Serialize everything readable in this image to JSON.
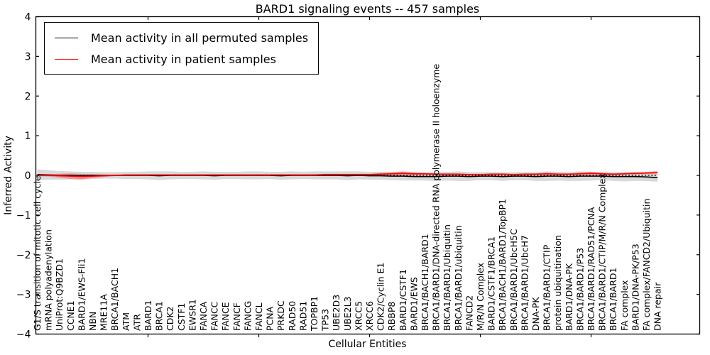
{
  "figure": {
    "title": "BARD1 signaling events -- 457 samples",
    "xlabel": "Cellular Entities",
    "ylabel": "Inferred Activity"
  },
  "legend": {
    "items": [
      {
        "label": "Mean activity in all permuted samples",
        "color": "#000000"
      },
      {
        "label": "Mean activity in patient samples",
        "color": "#ff0000"
      }
    ]
  },
  "chart_data": {
    "type": "line",
    "title": "BARD1 signaling events -- 457 samples",
    "xlabel": "Cellular Entities",
    "ylabel": "Inferred Activity",
    "ylim": [
      -4,
      4
    ],
    "grid": false,
    "legend_position": "upper left",
    "ytick_values": [
      4,
      3,
      2,
      1,
      0,
      -1,
      -2,
      -3,
      -4
    ],
    "ytick_labels": [
      "4",
      "3",
      "2",
      "1",
      "0",
      "−1",
      "−2",
      "−3",
      "−4"
    ],
    "xtick_indices": [
      10,
      20,
      30,
      40,
      50
    ],
    "categories": [
      "G1/S transition of mitotic cell cycle",
      "mRNA polyadenylation",
      "UniProt:Q9BZD1",
      "CCNE1",
      "BARD1/EWS-Fli1",
      "NBN",
      "MRE11A",
      "BRCA1/BACH1",
      "ATM",
      "ATR",
      "BARD1",
      "BRCA1",
      "CDK2",
      "CSTF1",
      "EWSR1",
      "FANCA",
      "FANCC",
      "FANCE",
      "FANCF",
      "FANCG",
      "FANCL",
      "PCNA",
      "PRKDC",
      "RAD50",
      "RAD51",
      "TOPBP1",
      "TP53",
      "UBE2D3",
      "UBE2L3",
      "XRCC5",
      "XRCC6",
      "CDK2/Cyclin E1",
      "RBBP8",
      "BARD1/CSTF1",
      "BARD1/EWS",
      "BRCA1/BACH1/BARD1",
      "BRCA1/BARD1/DNA-directed RNA polymerase II holoenzyme",
      "BRCA1/BARD1/Ubiquitin",
      "BRCA1/BARD1/ubiquitin",
      "FANCD2",
      "M/R/N Complex",
      "BARD1/CSTF1/BRCA1",
      "BRCA1/BACH1/BARD1/TopBP1",
      "BRCA1/BARD1/UbcH5C",
      "BRCA1/BARD1/UbcH7",
      "DNA-PK",
      "BRCA1/BARD1/CTIP",
      "protein ubiquitination",
      "BARD1/DNA-PK",
      "BRCA1/BARD1/P53",
      "BRCA1/BARD1/RAD51/PCNA",
      "BRCA1/BARD1/CTIP/M/R/N Complex",
      "BRCA1/BARD1",
      "FA complex",
      "BARD1/DNA-PK/P53",
      "FA complex/FANCD2/Ubiquitin",
      "DNA repair"
    ],
    "series": [
      {
        "name": "Mean activity in all permuted samples",
        "color": "#000000",
        "style": "solid",
        "values": [
          0.02,
          0.01,
          0.0,
          0.0,
          -0.01,
          0.0,
          0.0,
          0.0,
          0.0,
          0.0,
          0.0,
          -0.01,
          0.0,
          0.0,
          0.0,
          0.0,
          -0.01,
          0.0,
          0.0,
          0.0,
          0.0,
          0.0,
          -0.01,
          0.0,
          0.0,
          0.0,
          0.0,
          0.0,
          -0.01,
          0.0,
          -0.01,
          -0.01,
          -0.02,
          -0.02,
          -0.03,
          -0.03,
          -0.03,
          -0.02,
          -0.02,
          -0.03,
          -0.02,
          -0.02,
          -0.03,
          -0.02,
          -0.02,
          -0.03,
          -0.02,
          -0.02,
          -0.03,
          -0.02,
          -0.02,
          -0.02,
          -0.03,
          -0.03,
          -0.03,
          -0.04,
          -0.06
        ]
      },
      {
        "name": "Mean activity in patient samples",
        "color": "#ff0000",
        "style": "solid",
        "values": [
          0.0,
          0.0,
          -0.01,
          -0.02,
          -0.03,
          -0.02,
          -0.01,
          0.0,
          0.01,
          0.01,
          0.01,
          0.01,
          0.01,
          0.01,
          0.01,
          0.01,
          0.01,
          0.01,
          0.01,
          0.01,
          0.01,
          0.01,
          0.01,
          0.01,
          0.01,
          0.01,
          0.02,
          0.02,
          0.02,
          0.02,
          0.02,
          0.03,
          0.04,
          0.05,
          0.04,
          0.04,
          0.03,
          0.03,
          0.03,
          0.02,
          0.02,
          0.03,
          0.03,
          0.02,
          0.03,
          0.03,
          0.04,
          0.03,
          0.03,
          0.04,
          0.05,
          0.04,
          0.03,
          0.04,
          0.05,
          0.06,
          0.07
        ]
      }
    ],
    "bands": [
      {
        "name": "permuted-samples-band",
        "color": "#000000",
        "opacity": 0.15,
        "center_series": 0,
        "half_widths": [
          0.13,
          0.12,
          0.11,
          0.1,
          0.1,
          0.09,
          0.08,
          0.08,
          0.09,
          0.09,
          0.1,
          0.11,
          0.1,
          0.09,
          0.09,
          0.1,
          0.1,
          0.09,
          0.09,
          0.1,
          0.1,
          0.09,
          0.1,
          0.1,
          0.09,
          0.1,
          0.1,
          0.1,
          0.11,
          0.1,
          0.1,
          0.1,
          0.1,
          0.11,
          0.1,
          0.1,
          0.11,
          0.11,
          0.12,
          0.11,
          0.1,
          0.1,
          0.11,
          0.1,
          0.1,
          0.11,
          0.12,
          0.11,
          0.11,
          0.12,
          0.11,
          0.1,
          0.11,
          0.12,
          0.11,
          0.1,
          0.1
        ]
      },
      {
        "name": "patient-samples-band",
        "color": "#ff0000",
        "opacity": 0.3,
        "center_series": 1,
        "half_widths": [
          0.02,
          0.03,
          0.05,
          0.07,
          0.07,
          0.05,
          0.03,
          0.02,
          0.02,
          0.02,
          0.02,
          0.02,
          0.02,
          0.02,
          0.02,
          0.02,
          0.02,
          0.02,
          0.02,
          0.02,
          0.02,
          0.02,
          0.02,
          0.02,
          0.02,
          0.02,
          0.02,
          0.02,
          0.02,
          0.02,
          0.02,
          0.03,
          0.04,
          0.05,
          0.04,
          0.03,
          0.02,
          0.02,
          0.02,
          0.02,
          0.02,
          0.02,
          0.02,
          0.02,
          0.02,
          0.02,
          0.03,
          0.02,
          0.02,
          0.03,
          0.04,
          0.03,
          0.02,
          0.02,
          0.03,
          0.03,
          0.04
        ]
      }
    ],
    "baseline": {
      "value": 0,
      "style": "dotted",
      "color": "#000000"
    }
  }
}
